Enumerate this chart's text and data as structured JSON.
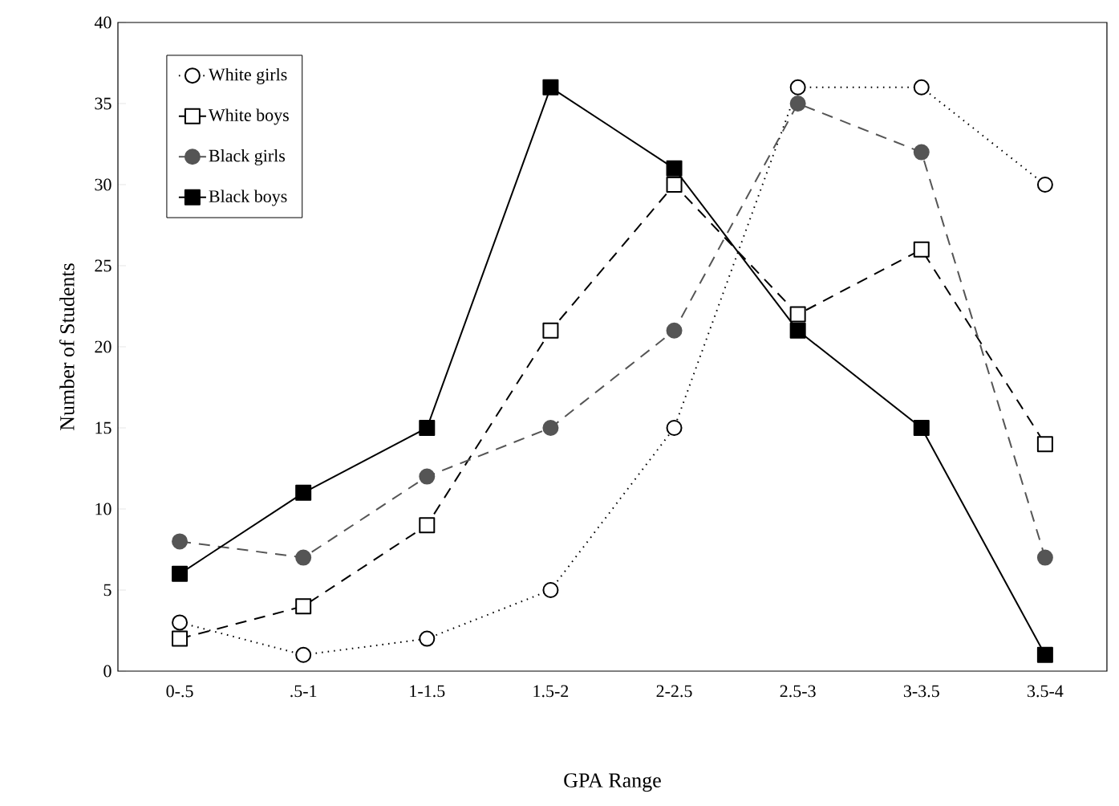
{
  "chart_data": {
    "type": "line",
    "xlabel": "GPA Range",
    "ylabel": "Number of Students",
    "categories": [
      "0-.5",
      ".5-1",
      "1-1.5",
      "1.5-2",
      "2-2.5",
      "2.5-3",
      "3-3.5",
      "3.5-4"
    ],
    "ylim": [
      0,
      40
    ],
    "yticks": [
      0,
      5,
      10,
      15,
      20,
      25,
      30,
      35,
      40
    ],
    "grid": false,
    "legend": "top left",
    "series": [
      {
        "name": "White girls",
        "color": "#000000",
        "marker": "circle",
        "line_style": "dotted",
        "values": [
          3,
          1,
          2,
          5,
          15,
          36,
          36,
          30
        ]
      },
      {
        "name": "White boys",
        "color": "#000000",
        "marker": "square",
        "line_style": "dashed",
        "values": [
          2,
          4,
          9,
          21,
          30,
          22,
          26,
          14
        ]
      },
      {
        "name": "Black girls",
        "color": "#555555",
        "marker": "circle",
        "line_style": "dashed",
        "values": [
          8,
          7,
          12,
          15,
          21,
          35,
          32,
          7
        ]
      },
      {
        "name": "Black boys",
        "color": "#000000",
        "marker": "square",
        "line_style": "solid",
        "values": [
          6,
          11,
          15,
          36,
          31,
          21,
          15,
          1
        ]
      }
    ]
  }
}
